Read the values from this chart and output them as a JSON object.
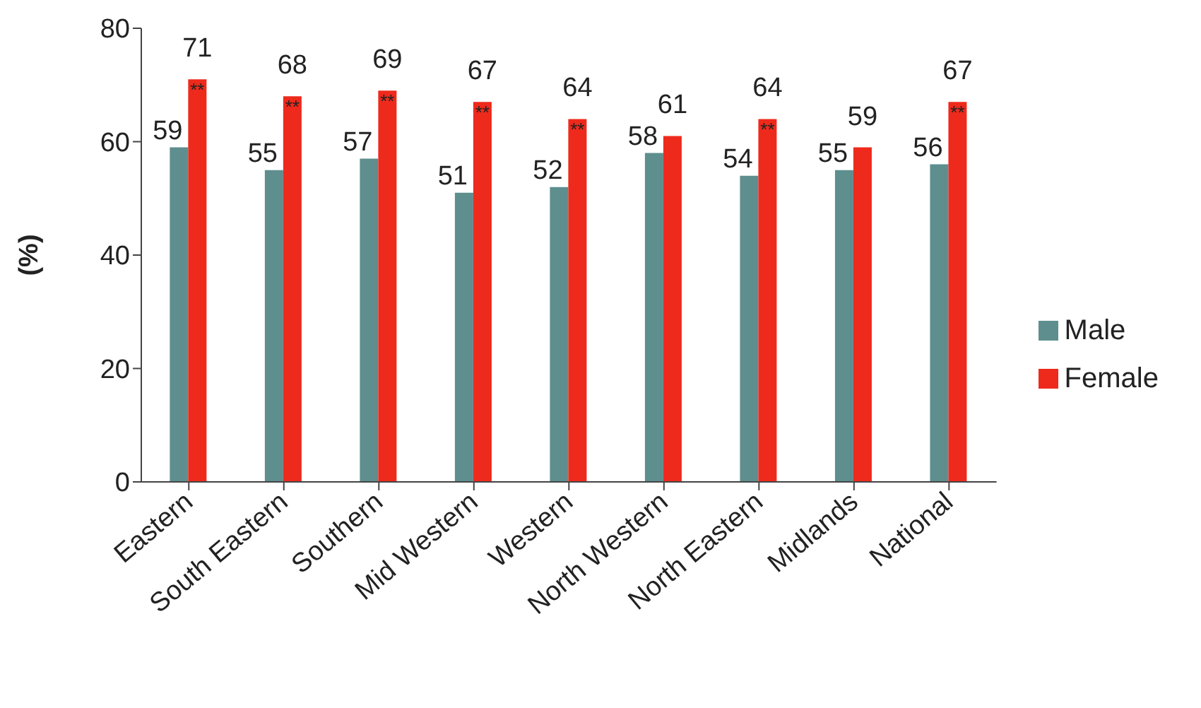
{
  "chart_data": {
    "type": "bar",
    "ylabel": "(%)",
    "categories": [
      "Eastern",
      "South Eastern",
      "Southern",
      "Mid Western",
      "Western",
      "North Western",
      "North Eastern",
      "Midlands",
      "National"
    ],
    "series": [
      {
        "name": "Male",
        "color": "#5e8e8e",
        "values": [
          59,
          55,
          57,
          51,
          52,
          58,
          54,
          55,
          56
        ]
      },
      {
        "name": "Female",
        "color": "#ee2a1c",
        "values": [
          71,
          68,
          69,
          67,
          64,
          61,
          64,
          59,
          67
        ]
      }
    ],
    "ylim": [
      0,
      80
    ],
    "yticks": [
      0,
      20,
      40,
      60,
      80
    ],
    "grid": false,
    "legend": "right",
    "data_labels": true,
    "annotations": [
      {
        "text": "**",
        "x": "Eastern",
        "y": 71
      },
      {
        "text": "**",
        "x": "South Eastern",
        "y": 68
      },
      {
        "text": "**",
        "x": "Southern",
        "y": 69
      },
      {
        "text": "**",
        "x": "Mid Western",
        "y": 67
      },
      {
        "text": "**",
        "x": "Western",
        "y": 64
      },
      {
        "text": "**",
        "x": "North Eastern",
        "y": 64
      },
      {
        "text": "**",
        "x": "National",
        "y": 67
      }
    ]
  }
}
